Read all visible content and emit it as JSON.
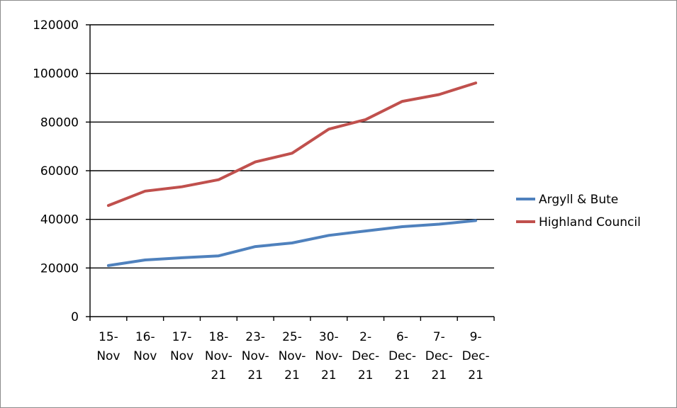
{
  "chart_data": {
    "type": "line",
    "title": "",
    "xlabel": "",
    "ylabel": "",
    "ylim": [
      0,
      120000
    ],
    "yticks": [
      "0",
      "20000",
      "40000",
      "60000",
      "80000",
      "100000",
      "120000"
    ],
    "grid": "horizontal major gridlines",
    "legend_position": "right",
    "categories": [
      [
        "15-",
        "Nov"
      ],
      [
        "16-",
        "Nov"
      ],
      [
        "17-",
        "Nov"
      ],
      [
        "18-",
        "Nov-",
        "21"
      ],
      [
        "23-",
        "Nov-",
        "21"
      ],
      [
        "25-",
        "Nov-",
        "21"
      ],
      [
        "30-",
        "Nov-",
        "21"
      ],
      [
        "2-",
        "Dec-",
        "21"
      ],
      [
        "6-",
        "Dec-",
        "21"
      ],
      [
        "7-",
        "Dec-",
        "21"
      ],
      [
        "9-",
        "Dec-",
        "21"
      ]
    ],
    "series": [
      {
        "name": "Argyll & Bute",
        "color": "#4f81bd",
        "values": [
          21000,
          23300,
          24200,
          25000,
          28800,
          30300,
          33400,
          35200,
          37000,
          38000,
          39500
        ]
      },
      {
        "name": "Highland Council",
        "color": "#c0504d",
        "values": [
          45700,
          51600,
          53400,
          56300,
          63600,
          67200,
          77100,
          81000,
          88500,
          91300,
          96100
        ]
      }
    ]
  }
}
